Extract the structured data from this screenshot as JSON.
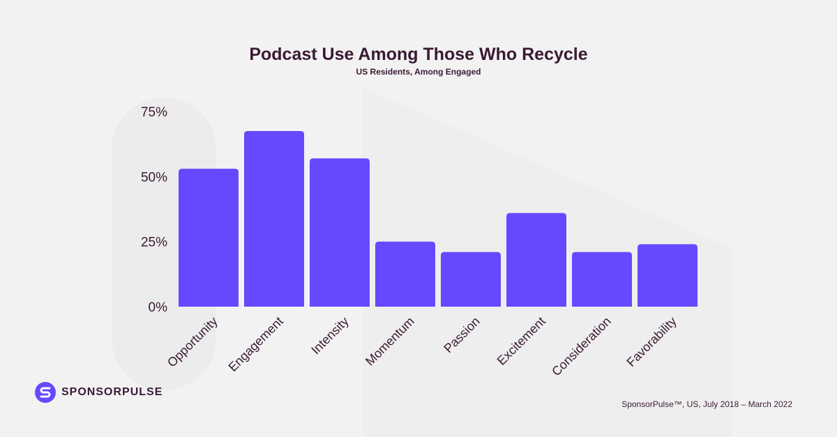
{
  "chart_data": {
    "type": "bar",
    "title": "Podcast Use Among Those Who Recycle",
    "subtitle": "US Residents, Among Engaged",
    "categories": [
      "Opportunity",
      "Engagement",
      "Intensity",
      "Momentum",
      "Passion",
      "Excitement",
      "Consideration",
      "Favorability"
    ],
    "values": [
      53,
      67.5,
      57,
      25,
      21,
      36,
      21,
      24
    ],
    "ylim": [
      0,
      75
    ],
    "yticks": [
      0,
      25,
      50,
      75
    ],
    "ytick_labels": [
      "0%",
      "25%",
      "50%",
      "75%"
    ],
    "grid": false,
    "bar_color": "#6549fe"
  },
  "branding": {
    "logo_text": "SPONSORPULSE",
    "logo_color": "#6549fe"
  },
  "source": "SponsorPulse™, US, July 2018 – March 2022"
}
